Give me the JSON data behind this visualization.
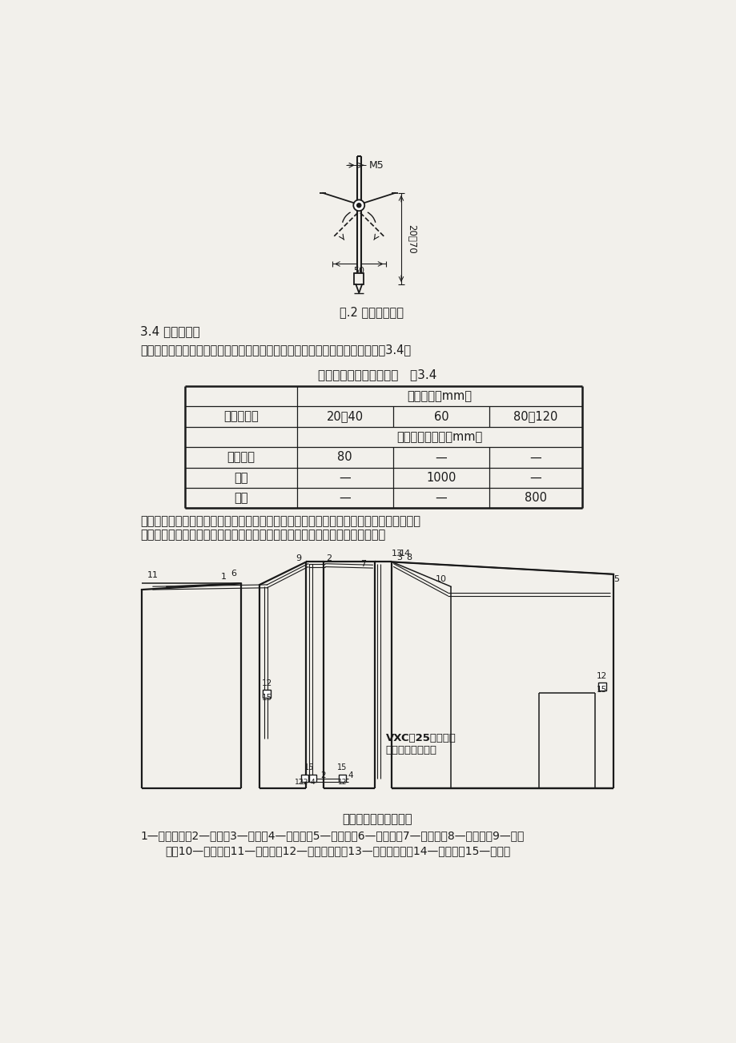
{
  "bg_color": "#f2f0eb",
  "page_width": 9.2,
  "page_height": 13.02,
  "fig2_caption": "图.2 伞型螺栓构造",
  "section_34_title": "3.4 线槽连接：",
  "section_34_text": "线槽及附件连接处应严密平整，无孔不入缝隙，紧贴建筑物固定点最大间距见表3.4。",
  "table_title": "槽体固定点最大间距尺寸   表3.4",
  "table_rows": [
    [
      "中心单列",
      "80",
      "—",
      "—"
    ],
    [
      "双列",
      "—",
      "1000",
      "—"
    ],
    [
      "双列",
      "—",
      "—",
      "800"
    ]
  ],
  "text_line1": "线槽分支接头，线槽附件如直能，三能转角，接头，插口，盒，箱应采用相同材质的定型产",
  "text_line2": "品。槽底、槽盖与各种附件相对接时，接缝处应严实平整，固定牢固见图所示。",
  "fig3_caption": "图塑料线槽安装示意图",
  "legend_line1": "1—塑料线槽；2—阳角；3—阴角；4—直转有；5—平转角；6—平三通；7—顶三通；8—连接头；9—右三",
  "legend_line2": "角；10—左三通；11—终端头；12—接线盒插口；13—灯头盒插口；14—灯头盒；15—接线盒"
}
